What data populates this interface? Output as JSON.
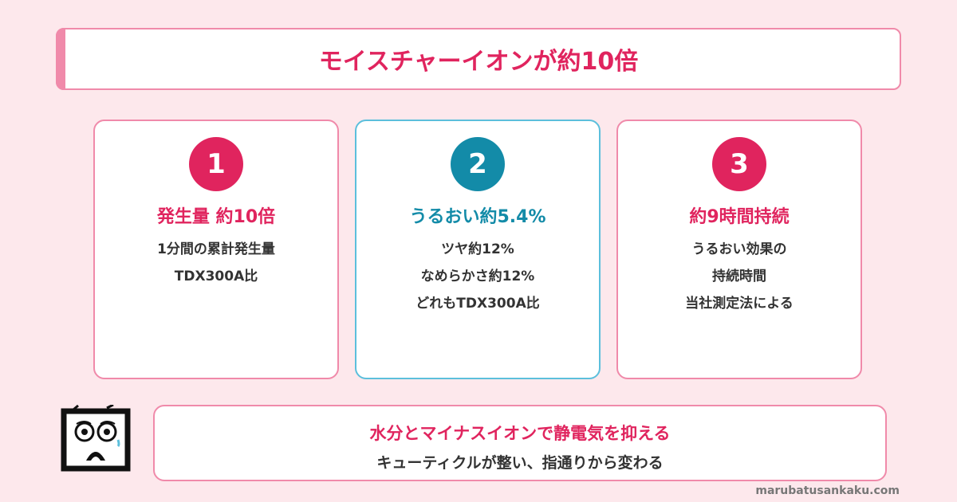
{
  "title": "モイスチャーイオンが約10倍",
  "cards": [
    {
      "number": "1",
      "heading": "発生量 約10倍",
      "lines": [
        "1分間の累計発生量",
        "TDX300A比"
      ]
    },
    {
      "number": "2",
      "heading": "うるおい約5.4%",
      "lines": [
        "ツヤ約12%",
        "なめらかさ約12%",
        "どれもTDX300A比"
      ]
    },
    {
      "number": "3",
      "heading": "約9時間持続",
      "lines": [
        "うるおい効果の",
        "持続時間",
        "当社測定法による"
      ]
    }
  ],
  "bottom": {
    "line1": "水分とマイナスイオンで静電気を抑える",
    "line2": "キューティクルが整い、指通りから変わる"
  },
  "footer": "marubatusankaku.com",
  "colors": {
    "accent_pink": "#e0245e",
    "accent_blue": "#138ba8",
    "border_pink": "#f08aaa",
    "border_blue": "#5cbfdc",
    "background": "#fde8ec"
  },
  "icons": [
    "surprised-mascot-icon"
  ]
}
